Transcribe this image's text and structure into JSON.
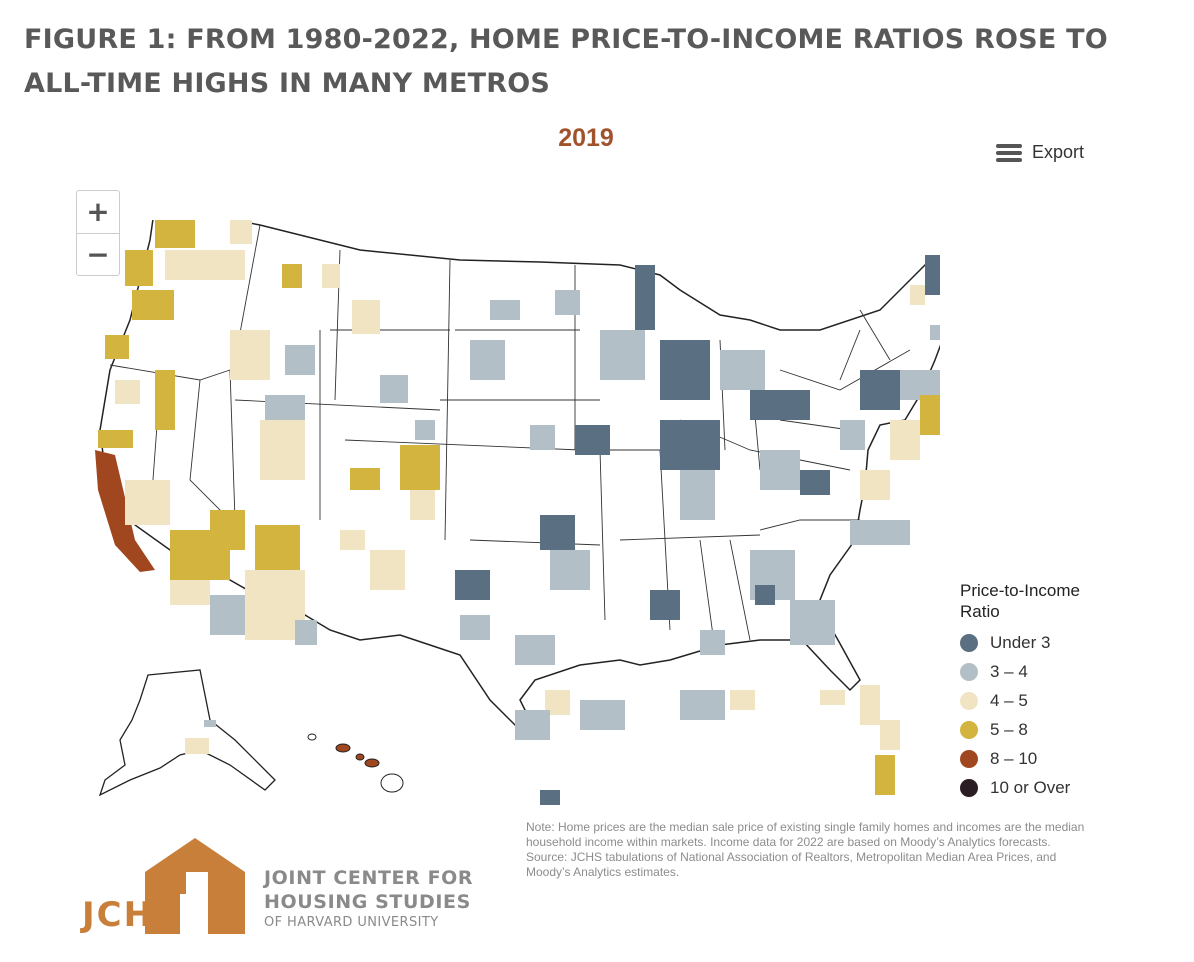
{
  "figure": {
    "title": "FIGURE 1: FROM 1980-2022, HOME PRICE-TO-INCOME RATIOS ROSE TO ALL-TIME HIGHS IN MANY METROS",
    "year_label": "2019"
  },
  "toolbar": {
    "export_label": "Export",
    "zoom_in_label": "+",
    "zoom_out_label": "−"
  },
  "legend": {
    "title": "Price-to-Income Ratio",
    "items": [
      {
        "label": "Under 3",
        "color": "#5b6f83"
      },
      {
        "label": "3 – 4",
        "color": "#b3bfc6"
      },
      {
        "label": "4 – 5",
        "color": "#f1e4c2"
      },
      {
        "label": "5 – 8",
        "color": "#d2b43e"
      },
      {
        "label": "8 – 10",
        "color": "#a1471f"
      },
      {
        "label": "10 or Over",
        "color": "#2b1d24"
      }
    ]
  },
  "note": {
    "text": "Note: Home prices are the median sale price of existing single family homes and incomes are the median household income within markets. Income data for 2022 are based on Moody’s Analytics forecasts.",
    "source": "Source: JCHS tabulations of National Association of Realtors, Metropolitan Median Area Prices, and Moody’s Analytics estimates."
  },
  "logo": {
    "acronym": "JCHS",
    "line1": "JOINT CENTER FOR",
    "line2": "HOUSING STUDIES",
    "line3": "OF HARVARD UNIVERSITY",
    "color": "#c87f3a"
  }
}
